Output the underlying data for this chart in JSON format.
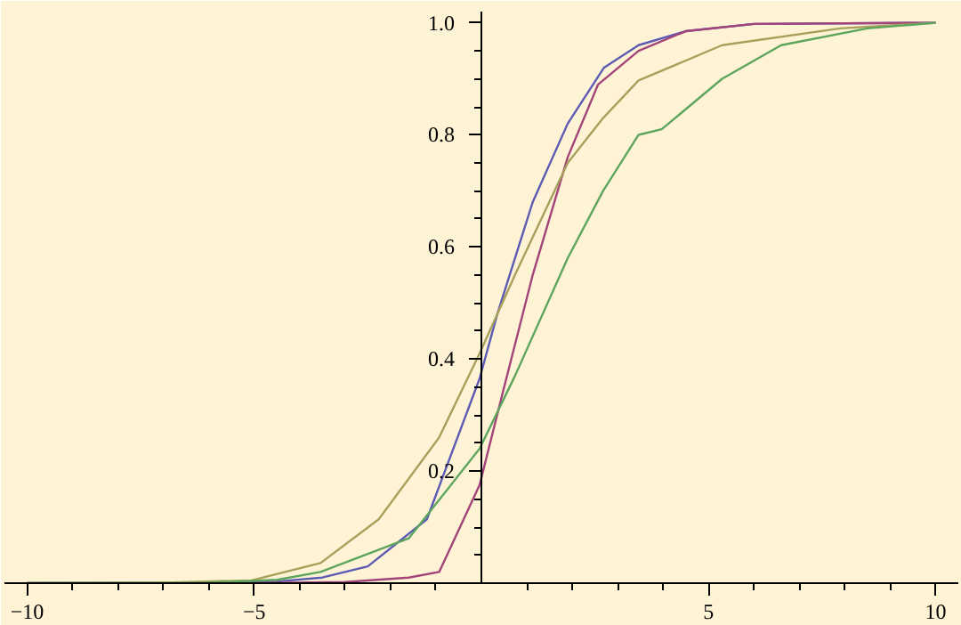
{
  "chart_data": {
    "type": "line",
    "xlim": [
      -10.5,
      10.5
    ],
    "ylim": [
      0,
      1.02
    ],
    "xticks": [
      {
        "value": -10,
        "label": "−10"
      },
      {
        "value": -9,
        "label": null
      },
      {
        "value": -8,
        "label": null
      },
      {
        "value": -7,
        "label": null
      },
      {
        "value": -6,
        "label": null
      },
      {
        "value": -5,
        "label": "−5"
      },
      {
        "value": -4,
        "label": null
      },
      {
        "value": -3,
        "label": null
      },
      {
        "value": -2,
        "label": null
      },
      {
        "value": -1,
        "label": null
      },
      {
        "value": 1,
        "label": null
      },
      {
        "value": 2,
        "label": null
      },
      {
        "value": 3,
        "label": null
      },
      {
        "value": 4,
        "label": null
      },
      5,
      {
        "value": 6,
        "label": null
      },
      {
        "value": 7,
        "label": null
      },
      {
        "value": 8,
        "label": null
      },
      {
        "value": 9,
        "label": null
      },
      10
    ],
    "yticks": [
      {
        "value": 0.05,
        "label": null
      },
      {
        "value": 0.1,
        "label": null
      },
      {
        "value": 0.15,
        "label": null
      },
      {
        "value": 0.2,
        "label": "0.2"
      },
      {
        "value": 0.25,
        "label": null
      },
      {
        "value": 0.3,
        "label": null
      },
      {
        "value": 0.35,
        "label": null
      },
      {
        "value": 0.4,
        "label": "0.4"
      },
      {
        "value": 0.45,
        "label": null
      },
      {
        "value": 0.5,
        "label": null
      },
      {
        "value": 0.55,
        "label": null
      },
      {
        "value": 0.6,
        "label": "0.6"
      },
      {
        "value": 0.65,
        "label": null
      },
      {
        "value": 0.7,
        "label": null
      },
      {
        "value": 0.75,
        "label": null
      },
      {
        "value": 0.8,
        "label": "0.8"
      },
      {
        "value": 0.85,
        "label": null
      },
      {
        "value": 0.9,
        "label": null
      },
      {
        "value": 0.95,
        "label": null
      },
      {
        "value": 1.0,
        "label": "1.0"
      }
    ],
    "marker": "none",
    "line_style": "solid",
    "series": [
      {
        "color": "#5b5bb3",
        "x": [
          -10,
          -6,
          -4.5,
          -3.5,
          -2.5,
          -1.2,
          -0.04,
          0.35,
          1.13,
          1.9,
          2.7,
          3.46,
          4.5,
          6,
          10
        ],
        "values": [
          0,
          0,
          0.003,
          0.01,
          0.03,
          0.114,
          0.365,
          0.48,
          0.68,
          0.82,
          0.92,
          0.96,
          0.985,
          0.998,
          1
        ]
      },
      {
        "color": "#a2447a",
        "x": [
          -10,
          -5,
          -3,
          -1.6,
          -0.93,
          -0.04,
          0.47,
          1.13,
          1.9,
          2.57,
          3.46,
          4.5,
          6,
          10
        ],
        "values": [
          0,
          0,
          0.002,
          0.01,
          0.02,
          0.175,
          0.34,
          0.55,
          0.76,
          0.89,
          0.95,
          0.985,
          0.998,
          1
        ]
      },
      {
        "color": "#a6a05a",
        "x": [
          -10,
          -7,
          -5.06,
          -3.54,
          -2.26,
          -0.93,
          -0.04,
          0.74,
          1.9,
          2.68,
          3.46,
          5.3,
          7.9,
          10
        ],
        "values": [
          0,
          0.001,
          0.005,
          0.036,
          0.114,
          0.26,
          0.41,
          0.55,
          0.75,
          0.83,
          0.897,
          0.96,
          0.99,
          1
        ]
      },
      {
        "color": "#5da55d",
        "x": [
          -10,
          -6,
          -4.5,
          -3.54,
          -1.6,
          -0.04,
          0.74,
          1.9,
          2.68,
          3.46,
          3.97,
          5.3,
          6.6,
          8.5,
          10
        ],
        "values": [
          0,
          0.001,
          0.006,
          0.02,
          0.08,
          0.24,
          0.37,
          0.58,
          0.7,
          0.8,
          0.81,
          0.9,
          0.96,
          0.99,
          1
        ]
      }
    ]
  }
}
